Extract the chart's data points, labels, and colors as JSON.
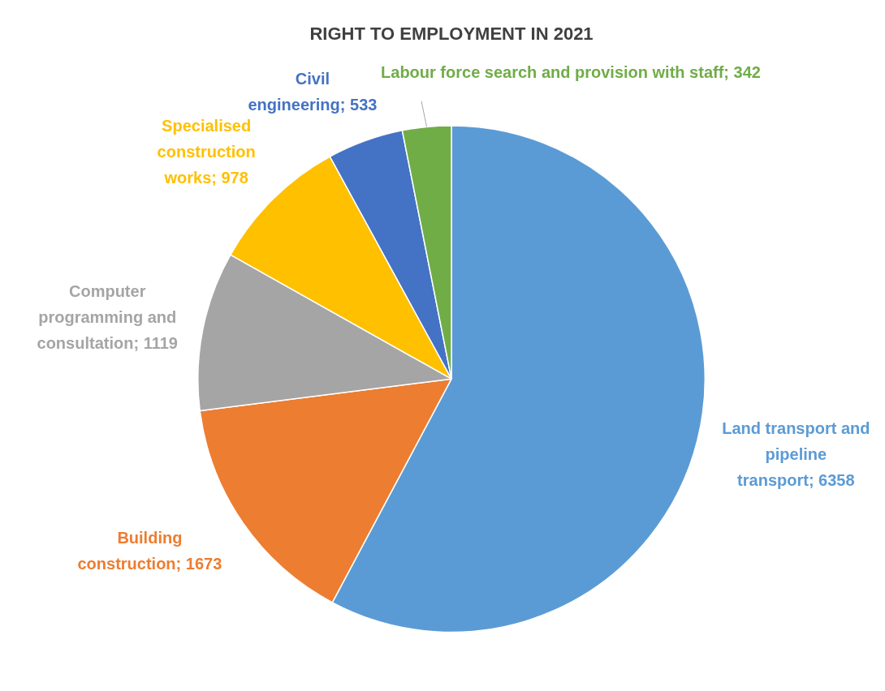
{
  "chart_data": {
    "type": "pie",
    "title": "RIGHT TO EMPLOYMENT IN 2021",
    "categories": [
      "Land transport and pipeline transport",
      "Building construction",
      "Computer programming and consultation",
      "Specialised construction works",
      "Civil engineering",
      "Labour force search and provision with staff"
    ],
    "values": [
      6358,
      1673,
      1119,
      978,
      533,
      342
    ],
    "colors": [
      "#5b9bd5",
      "#ed7d31",
      "#a5a5a5",
      "#ffc000",
      "#4472c4",
      "#70ad47"
    ],
    "value_labels": [
      "; 6358",
      "; 1673",
      "; 1119",
      "; 978",
      "; 533",
      "; 342"
    ],
    "legend": false
  }
}
